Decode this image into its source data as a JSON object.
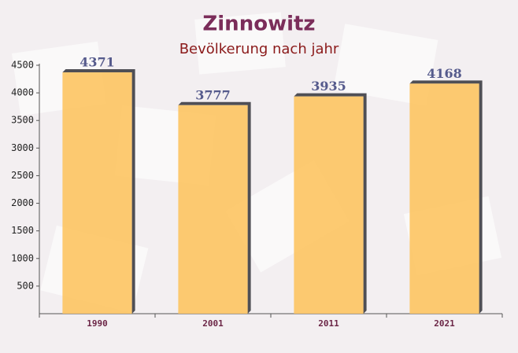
{
  "chart_data": {
    "type": "bar",
    "title": "Zinnowitz",
    "subtitle": "Bevölkerung nach jahr",
    "categories": [
      "1990",
      "2001",
      "2011",
      "2021"
    ],
    "values": [
      4371,
      3777,
      3935,
      4168
    ],
    "color": "#fdc462",
    "ylim": [
      0,
      4500
    ],
    "yticks": [
      500,
      1000,
      1500,
      2000,
      2500,
      3000,
      3500,
      4000,
      4500
    ],
    "grid": false
  }
}
